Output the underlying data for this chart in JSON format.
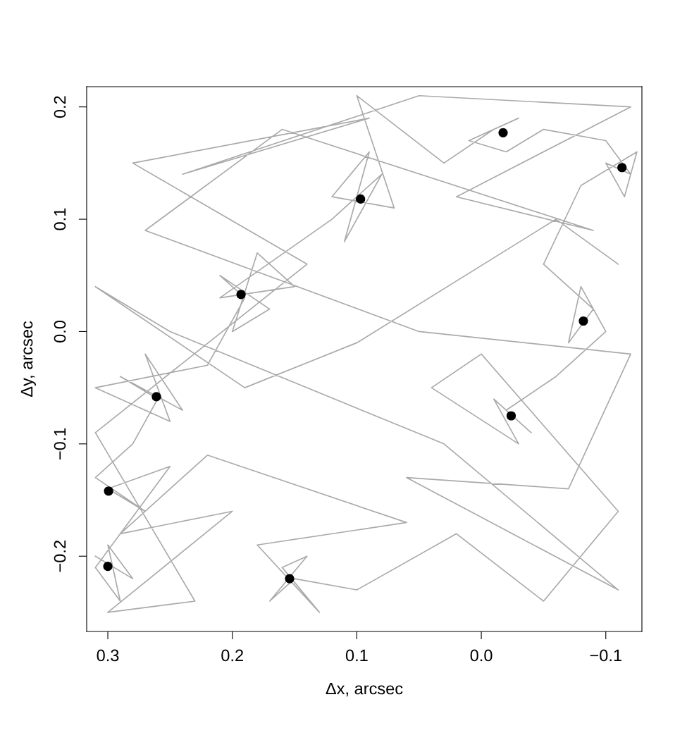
{
  "chart_data": {
    "type": "line",
    "xlabel": "Δx, arcsec",
    "ylabel": "Δy, arcsec",
    "xlim": [
      0.317,
      -0.129
    ],
    "ylim": [
      -0.267,
      0.218
    ],
    "xticks": [
      0.3,
      0.2,
      0.1,
      {
        "value": 0.0,
        "label": "0.0"
      },
      {
        "value": -0.1,
        "label": "−0.1"
      }
    ],
    "yticks": [
      {
        "value": -0.2,
        "label": "−0.2"
      },
      {
        "value": -0.1,
        "label": "−0.1"
      },
      {
        "value": 0.0,
        "label": "0.0"
      },
      0.1,
      0.2
    ],
    "grid": false,
    "legend": false,
    "series": [
      {
        "color": "#aaaaaa",
        "marker": "none",
        "line_style": "solid",
        "x": [
          0.31,
          0.28,
          0.3,
          0.29,
          0.31,
          0.25,
          0.3,
          0.27,
          0.31,
          0.28,
          0.26,
          0.29,
          0.24,
          0.27,
          0.25,
          0.31,
          0.22,
          0.19,
          0.21,
          0.17,
          0.2,
          0.18,
          0.15,
          0.21,
          0.12,
          0.1,
          0.08,
          0.11,
          0.09,
          0.12,
          0.07,
          0.1,
          0.03,
          -0.01,
          -0.03,
          0.01,
          -0.02,
          -0.05,
          -0.1,
          -0.12,
          -0.1,
          -0.115,
          -0.125,
          -0.08,
          -0.05,
          -0.09,
          -0.07,
          -0.08,
          -0.1,
          -0.06,
          -0.02,
          -0.04,
          -0.01,
          -0.03,
          0.04,
          0.0,
          -0.11,
          -0.05,
          0.02,
          0.1,
          0.15,
          0.17,
          0.14,
          0.16,
          0.13,
          0.18,
          0.06,
          0.22,
          0.29,
          0.2,
          0.3,
          0.23,
          0.31,
          0.14,
          0.28,
          0.09,
          0.24,
          0.05,
          -0.12,
          0.02,
          -0.09,
          0.16,
          0.27,
          0.05,
          -0.12,
          -0.07,
          0.06,
          -0.11,
          0.03,
          0.25,
          0.31,
          0.19,
          0.1,
          -0.06,
          -0.11
        ],
        "values": [
          -0.2,
          -0.22,
          -0.19,
          -0.24,
          -0.21,
          -0.12,
          -0.14,
          -0.16,
          -0.13,
          -0.1,
          -0.06,
          -0.04,
          -0.07,
          -0.02,
          -0.08,
          -0.05,
          -0.03,
          0.03,
          0.05,
          0.02,
          0.0,
          0.07,
          0.04,
          0.03,
          0.1,
          0.12,
          0.14,
          0.08,
          0.16,
          0.12,
          0.11,
          0.21,
          0.15,
          0.18,
          0.19,
          0.17,
          0.16,
          0.18,
          0.17,
          0.14,
          0.15,
          0.12,
          0.16,
          0.13,
          0.06,
          0.02,
          -0.01,
          0.04,
          0.0,
          -0.04,
          -0.07,
          -0.09,
          -0.06,
          -0.1,
          -0.05,
          -0.02,
          -0.16,
          -0.24,
          -0.18,
          -0.23,
          -0.22,
          -0.24,
          -0.2,
          -0.21,
          -0.25,
          -0.19,
          -0.17,
          -0.11,
          -0.18,
          -0.16,
          -0.25,
          -0.24,
          -0.09,
          0.06,
          0.15,
          0.19,
          0.14,
          0.21,
          0.2,
          0.12,
          0.09,
          0.18,
          0.09,
          0.0,
          -0.02,
          -0.14,
          -0.13,
          -0.23,
          -0.1,
          0.0,
          0.04,
          -0.05,
          -0.01,
          0.1,
          0.06
        ]
      },
      {
        "type": "scatter",
        "color": "#000000",
        "marker": "circle",
        "x": [
          0.3,
          0.2994,
          0.261,
          0.193,
          0.097,
          -0.0175,
          -0.113,
          -0.082,
          -0.024,
          0.154
        ],
        "values": [
          -0.209,
          -0.142,
          -0.058,
          0.033,
          0.118,
          0.177,
          0.146,
          0.0094,
          -0.075,
          -0.22
        ]
      }
    ]
  }
}
